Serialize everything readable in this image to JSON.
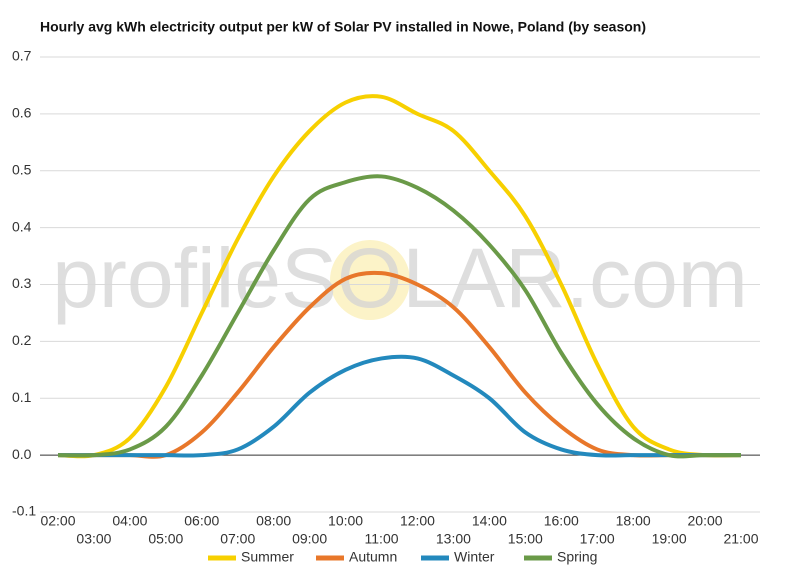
{
  "chart_data": {
    "type": "line",
    "title": "Hourly avg kWh electricity output per kW of Solar PV installed in Nowe, Poland (by season)",
    "watermark": "profileSOLAR.com",
    "categories": [
      "02:00",
      "03:00",
      "04:00",
      "05:00",
      "06:00",
      "07:00",
      "08:00",
      "09:00",
      "10:00",
      "11:00",
      "12:00",
      "13:00",
      "14:00",
      "15:00",
      "16:00",
      "17:00",
      "18:00",
      "19:00",
      "20:00",
      "21:00"
    ],
    "series": [
      {
        "name": "Summer",
        "color": "#f7d000",
        "values": [
          0,
          0,
          0.03,
          0.12,
          0.25,
          0.38,
          0.49,
          0.57,
          0.62,
          0.63,
          0.6,
          0.57,
          0.5,
          0.42,
          0.3,
          0.16,
          0.05,
          0.01,
          0,
          0
        ]
      },
      {
        "name": "Autumn",
        "color": "#e8772a",
        "values": [
          0,
          0,
          0,
          0,
          0.04,
          0.11,
          0.19,
          0.26,
          0.31,
          0.32,
          0.3,
          0.26,
          0.19,
          0.11,
          0.05,
          0.01,
          0,
          0,
          0,
          0
        ]
      },
      {
        "name": "Winter",
        "color": "#2389bd",
        "values": [
          0,
          0,
          0,
          0,
          0,
          0.01,
          0.05,
          0.11,
          0.15,
          0.17,
          0.17,
          0.14,
          0.1,
          0.04,
          0.01,
          0,
          0,
          0,
          0,
          0
        ]
      },
      {
        "name": "Spring",
        "color": "#6a9a48",
        "values": [
          0,
          0,
          0.01,
          0.05,
          0.14,
          0.25,
          0.36,
          0.45,
          0.48,
          0.49,
          0.47,
          0.43,
          0.37,
          0.29,
          0.18,
          0.09,
          0.03,
          0,
          0,
          0
        ]
      }
    ],
    "ylim": [
      -0.1,
      0.7
    ],
    "yticks": [
      -0.1,
      {
        "value": 0,
        "label": "0.0"
      },
      0.1,
      0.2,
      0.3,
      0.4,
      0.5,
      0.6,
      0.7
    ],
    "grid": true
  }
}
